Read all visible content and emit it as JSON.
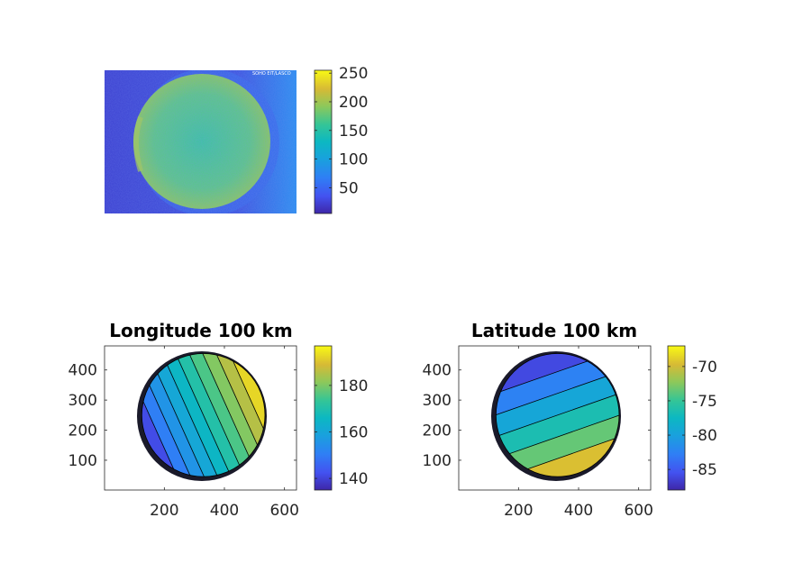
{
  "chart_data": [
    {
      "type": "heatmap",
      "title": "",
      "subject": "camera image of a circular disk",
      "colorbar": {
        "ticks": [
          "50",
          "100",
          "150",
          "200",
          "250"
        ],
        "range": [
          5,
          255
        ]
      },
      "overlay_text": "SOHO  EIT/LASCO",
      "axes_visible": false
    },
    {
      "type": "heatmap",
      "title": "Longitude 100 km",
      "x_ticks": [
        "200",
        "400",
        "600"
      ],
      "y_ticks": [
        "100",
        "200",
        "300",
        "400"
      ],
      "xlim": [
        1,
        640
      ],
      "ylim": [
        1,
        480
      ],
      "colorbar": {
        "ticks": [
          "140",
          "160",
          "180"
        ],
        "range": [
          135,
          197
        ]
      },
      "disk": {
        "center_x": 330,
        "center_y": 250,
        "radius": 205
      },
      "contour_levels": [
        148,
        153,
        158,
        163,
        168,
        173,
        178,
        183,
        188
      ]
    },
    {
      "type": "heatmap",
      "title": "Latitude 100 km",
      "x_ticks": [
        "200",
        "400",
        "600"
      ],
      "y_ticks": [
        "100",
        "200",
        "300",
        "400"
      ],
      "xlim": [
        1,
        640
      ],
      "ylim": [
        1,
        480
      ],
      "colorbar": {
        "ticks": [
          "-70",
          "-75",
          "-80",
          "-85"
        ],
        "range": [
          -88,
          -67
        ]
      },
      "disk": {
        "center_x": 330,
        "center_y": 250,
        "radius": 205
      },
      "contour_levels": [
        -84,
        -81,
        -78,
        -75,
        -72
      ]
    }
  ]
}
